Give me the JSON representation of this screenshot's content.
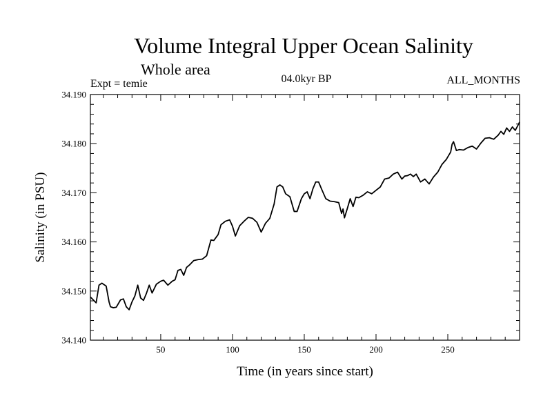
{
  "chart_data": {
    "type": "line",
    "title": "Volume Integral Upper Ocean Salinity",
    "subtitle": "Whole area",
    "experiment": "Expt = temie",
    "period": "04.0kyr BP",
    "months": "ALL_MONTHS",
    "xlabel": "Time (in years since start)",
    "ylabel": "Salinity (in PSU)",
    "xlim": [
      1,
      300
    ],
    "ylim": [
      34.14,
      34.19
    ],
    "grid": false,
    "x_ticks": [
      50,
      100,
      150,
      200,
      250
    ],
    "x_tick_labels": [
      "50",
      "100",
      "150",
      "200",
      "250"
    ],
    "y_ticks": [
      34.14,
      34.15,
      34.16,
      34.17,
      34.18,
      34.19
    ],
    "y_tick_labels": [
      "34.140",
      "34.150",
      "34.160",
      "34.170",
      "34.180",
      "34.190"
    ],
    "series": [
      {
        "name": "salinity",
        "x": [
          1,
          3,
          5,
          7,
          9,
          12,
          14,
          15,
          17,
          19,
          22,
          24,
          26,
          28,
          30,
          32,
          34,
          36,
          38,
          40,
          42,
          44,
          47,
          50,
          52,
          55,
          58,
          60,
          62,
          64,
          66,
          68,
          70,
          73,
          76,
          79,
          82,
          85,
          87,
          90,
          92,
          95,
          98,
          100,
          102,
          105,
          108,
          111,
          114,
          117,
          120,
          123,
          126,
          129,
          131,
          133,
          135,
          137,
          140,
          143,
          145,
          148,
          150,
          152,
          154,
          156,
          158,
          160,
          162,
          165,
          168,
          171,
          174,
          176,
          177,
          178,
          180,
          182,
          184,
          186,
          188,
          191,
          194,
          197,
          200,
          203,
          206,
          209,
          212,
          215,
          218,
          220,
          222,
          224,
          226,
          228,
          231,
          234,
          237,
          240,
          243,
          246,
          249,
          252,
          253,
          254,
          256,
          258,
          261,
          264,
          267,
          270,
          273,
          276,
          279,
          282,
          285,
          287,
          289,
          291,
          293,
          295,
          297,
          299,
          300
        ],
        "values": [
          34.1488,
          34.1482,
          34.1476,
          34.1512,
          34.1516,
          34.151,
          34.1478,
          34.1468,
          34.1466,
          34.1467,
          34.1482,
          34.1484,
          34.1468,
          34.1462,
          34.1478,
          34.149,
          34.1512,
          34.1486,
          34.1481,
          34.1495,
          34.1512,
          34.1496,
          34.1514,
          34.152,
          34.1522,
          34.1512,
          34.152,
          34.1523,
          34.1542,
          34.1544,
          34.1532,
          34.1548,
          34.1553,
          34.1562,
          34.1564,
          34.1565,
          34.1572,
          34.1604,
          34.1603,
          34.1615,
          34.1635,
          34.1642,
          34.1645,
          34.1632,
          34.1612,
          34.1633,
          34.1642,
          34.165,
          34.1648,
          34.164,
          34.162,
          34.1638,
          34.1648,
          34.1677,
          34.1712,
          34.1716,
          34.1712,
          34.1698,
          34.1692,
          34.1662,
          34.1662,
          34.1688,
          34.1698,
          34.1702,
          34.1688,
          34.1708,
          34.1722,
          34.1722,
          34.1708,
          34.1688,
          34.1683,
          34.1682,
          34.168,
          34.1658,
          34.1667,
          34.1649,
          34.1668,
          34.1688,
          34.1672,
          34.1691,
          34.169,
          34.1695,
          34.1702,
          34.1698,
          34.1705,
          34.1712,
          34.1728,
          34.173,
          34.1738,
          34.1742,
          34.1728,
          34.1734,
          34.1735,
          34.1738,
          34.1733,
          34.1738,
          34.1722,
          34.1728,
          34.1718,
          34.1732,
          34.1742,
          34.1758,
          34.1768,
          34.1783,
          34.1799,
          34.1804,
          34.1786,
          34.1788,
          34.1787,
          34.1792,
          34.1795,
          34.1789,
          34.1801,
          34.1811,
          34.1812,
          34.1809,
          34.1817,
          34.1825,
          34.1819,
          34.1832,
          34.1825,
          34.1834,
          34.1827,
          34.1838,
          34.1844
        ]
      }
    ]
  }
}
